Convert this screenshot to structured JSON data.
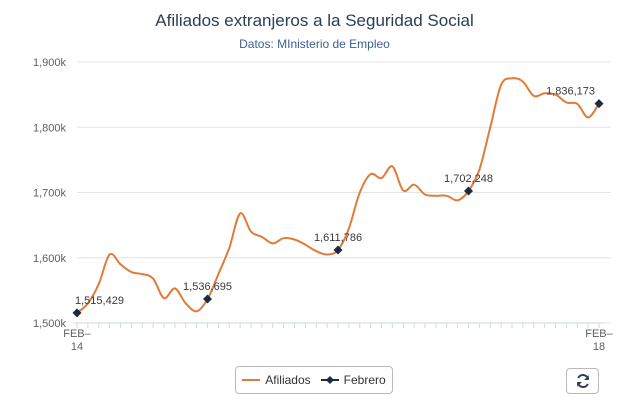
{
  "chart_data": {
    "type": "line",
    "title": "Afiliados extranjeros a la Seguridad Social",
    "subtitle": "Datos: MInisterio de Empleo",
    "xlabel": "",
    "ylabel": "",
    "ylim": [
      1500000,
      1900000
    ],
    "y_ticks": [
      1500000,
      1600000,
      1700000,
      1800000,
      1900000
    ],
    "y_tick_labels": [
      "1,500k",
      "1,600k",
      "1,700k",
      "1,800k",
      "1,900k"
    ],
    "x_tick_labels": [
      "FEB–\n14",
      "FEB–\n18"
    ],
    "grid": "horizontal",
    "legend_position": "bottom",
    "series": [
      {
        "name": "Afiliados",
        "color": "#e07b39",
        "values": [
          1515429,
          1530000,
          1560000,
          1605000,
          1590000,
          1578000,
          1575000,
          1568000,
          1538000,
          1553000,
          1530000,
          1518000,
          1536695,
          1575000,
          1615000,
          1668000,
          1640000,
          1632000,
          1622000,
          1630000,
          1628000,
          1620000,
          1610000,
          1605000,
          1611786,
          1645000,
          1700000,
          1728000,
          1722000,
          1740000,
          1703000,
          1712000,
          1697000,
          1695000,
          1695000,
          1688000,
          1702248,
          1735000,
          1800000,
          1865000,
          1875000,
          1870000,
          1848000,
          1852000,
          1850000,
          1838000,
          1836000,
          1815000,
          1836173
        ]
      },
      {
        "name": "Febrero",
        "color": "#1b2b40",
        "points": [
          {
            "index": 0,
            "value": 1515429,
            "label": "1,515,429"
          },
          {
            "index": 12,
            "value": 1536695,
            "label": "1,536,695"
          },
          {
            "index": 24,
            "value": 1611786,
            "label": "1,611,786"
          },
          {
            "index": 36,
            "value": 1702248,
            "label": "1,702,248"
          },
          {
            "index": 48,
            "value": 1836173,
            "label": "1,836,173"
          }
        ]
      }
    ]
  },
  "legend": {
    "item1": "Afiliados",
    "item2": "Febrero"
  },
  "controls": {
    "refresh_icon": "refresh-icon"
  }
}
